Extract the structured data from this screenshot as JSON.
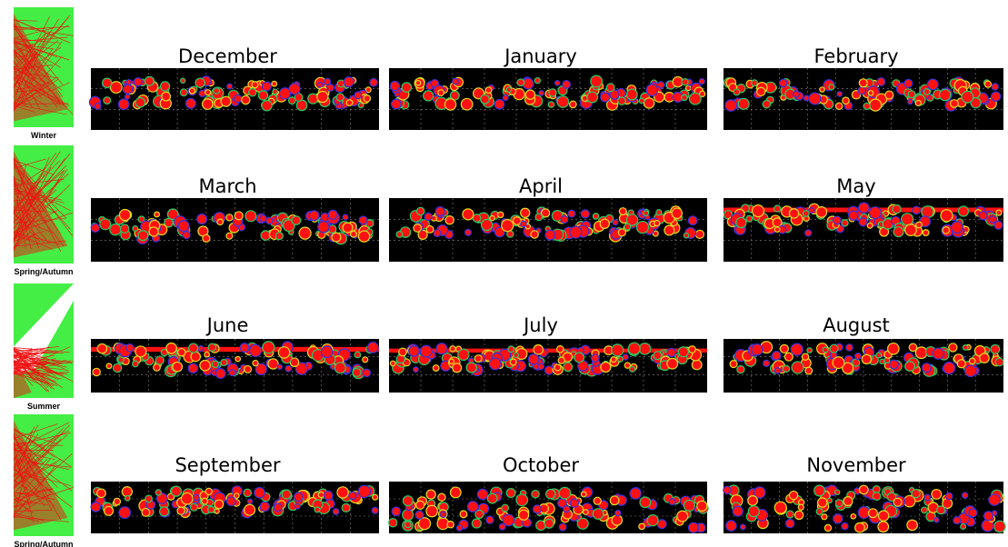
{
  "rows": [
    {
      "season": "Winter",
      "months": [
        "December",
        "January",
        "February"
      ]
    },
    {
      "season": "Spring/Autumn",
      "months": [
        "March",
        "April",
        "May"
      ]
    },
    {
      "season": "Summer",
      "months": [
        "June",
        "July",
        "August"
      ]
    },
    {
      "season": "Spring/Autumn",
      "months": [
        "September",
        "October",
        "November"
      ]
    }
  ]
}
